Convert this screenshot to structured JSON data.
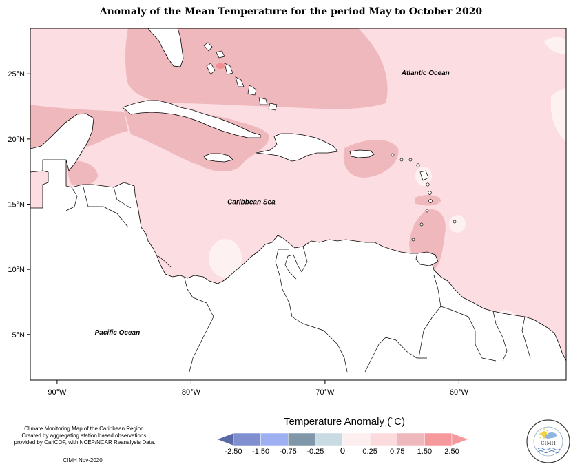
{
  "title": "Anomaly of the Mean Temperature for the period May to October 2020",
  "map": {
    "lon_range": [
      -92,
      -52
    ],
    "lat_range": [
      1.5,
      28.5
    ],
    "x_ticks": [
      {
        "lon": -90,
        "label": "90°W"
      },
      {
        "lon": -80,
        "label": "80°W"
      },
      {
        "lon": -70,
        "label": "70°W"
      },
      {
        "lon": -60,
        "label": "60°W"
      }
    ],
    "y_ticks": [
      {
        "lat": 25,
        "label": "25°N"
      },
      {
        "lat": 20,
        "label": "20°N"
      },
      {
        "lat": 15,
        "label": "15°N"
      },
      {
        "lat": 10,
        "label": "10°N"
      },
      {
        "lat": 5,
        "label": "5°N"
      }
    ],
    "region_labels": [
      {
        "text": "Atlantic Ocean",
        "lon": -62.5,
        "lat": 24.9
      },
      {
        "text": "Caribbean Sea",
        "lon": -75.5,
        "lat": 15.0
      },
      {
        "text": "Pacific Ocean",
        "lon": -85.5,
        "lat": 5.0
      }
    ],
    "colors": {
      "background_anomaly": "#fcdde1",
      "warm_anomaly": "#eeb8bd",
      "hot_anomaly": "#f08e93",
      "near_zero": "#fdf1f2",
      "cool_anomaly": "#c8d9e2",
      "land": "#ffffff",
      "coast": "#000000"
    }
  },
  "legend": {
    "title": "Temperature Anomaly (˚C)",
    "bins": [
      {
        "color": "#5a6aa6"
      },
      {
        "color": "#7f8fd0"
      },
      {
        "color": "#9fb0f2"
      },
      {
        "color": "#7f97a9"
      },
      {
        "color": "#c8dbe2"
      },
      {
        "color": "#fdeff0"
      },
      {
        "color": "#fcdbdf"
      },
      {
        "color": "#eeb8bd"
      },
      {
        "color": "#f6999c"
      },
      {
        "color": "#f6999c"
      }
    ],
    "labels": [
      "-2.50",
      "-1.50",
      "-0.75",
      "-0.25",
      "0",
      "0.25",
      "0.75",
      "1.50",
      "2.50"
    ]
  },
  "credit": {
    "lines": [
      "Climate Monitoring Map of the Caribbean Region.",
      "Created by aggregating station based observations,",
      "provided by CariCOF, with NCEP/NCAR Reanalysis Data."
    ],
    "date": "CIMH Nov-2020"
  },
  "logo": {
    "text": "CIMH"
  }
}
